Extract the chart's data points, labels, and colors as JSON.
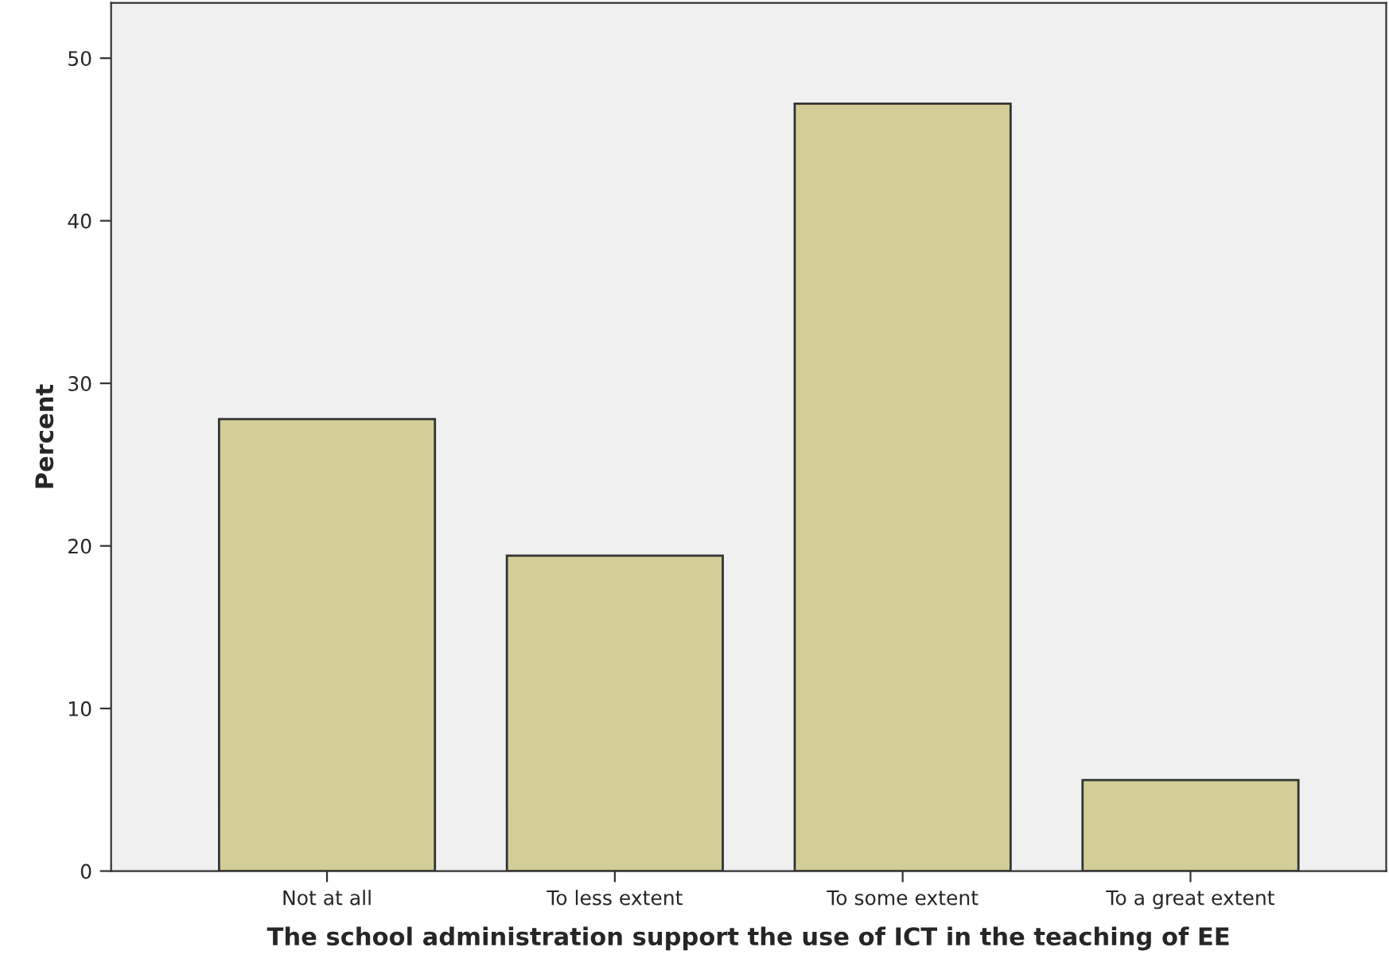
{
  "chart_data": {
    "type": "bar",
    "xlabel": "The school administration support the use of ICT in the teaching of EE",
    "ylabel": "Percent",
    "categories": [
      "Not at all",
      "To less extent",
      "To some extent",
      "To a great extent"
    ],
    "values": [
      27.8,
      19.4,
      47.2,
      5.6
    ],
    "color": "#d3ce97",
    "ylim": [
      0,
      53.4
    ],
    "yticks": [
      0,
      10,
      20,
      30,
      40,
      50
    ],
    "grid": false
  }
}
